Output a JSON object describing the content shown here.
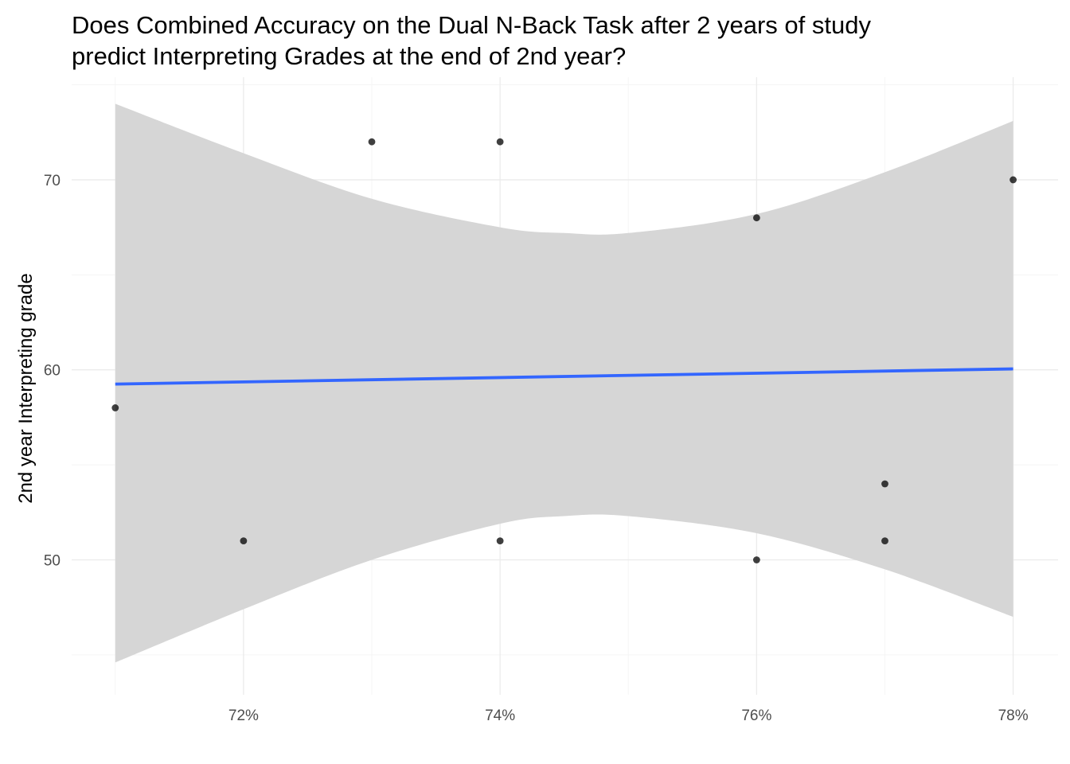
{
  "chart_data": {
    "type": "scatter",
    "title": [
      "Does Combined Accuracy on the Dual N-Back Task after 2 years of study",
      "predict Interpreting Grades at the end of 2nd year?"
    ],
    "xlabel": "",
    "ylabel": "2nd year Interpreting grade",
    "x_tick_values": [
      0.72,
      0.74,
      0.76,
      0.78
    ],
    "x_tick_labels": [
      "72%",
      "74%",
      "76%",
      "78%"
    ],
    "y_tick_values": [
      50,
      60,
      70
    ],
    "y_tick_labels": [
      "50",
      "60",
      "70"
    ],
    "xlim": [
      0.7066,
      0.7835
    ],
    "ylim": [
      42.9,
      75.4
    ],
    "grid": true,
    "points": [
      {
        "x": 0.71,
        "y": 58
      },
      {
        "x": 0.72,
        "y": 51
      },
      {
        "x": 0.73,
        "y": 72
      },
      {
        "x": 0.74,
        "y": 72
      },
      {
        "x": 0.74,
        "y": 51
      },
      {
        "x": 0.76,
        "y": 68
      },
      {
        "x": 0.76,
        "y": 50
      },
      {
        "x": 0.77,
        "y": 54
      },
      {
        "x": 0.77,
        "y": 51
      },
      {
        "x": 0.78,
        "y": 70
      }
    ],
    "fit_line": {
      "x": [
        0.71,
        0.78
      ],
      "y": [
        59.25,
        60.05
      ]
    },
    "confidence_band": {
      "x": [
        0.71,
        0.72,
        0.73,
        0.74,
        0.745,
        0.75,
        0.76,
        0.77,
        0.78
      ],
      "upper": [
        74.0,
        71.4,
        69.0,
        67.5,
        67.2,
        67.2,
        68.2,
        70.4,
        73.1
      ],
      "lower": [
        44.6,
        47.4,
        50.0,
        51.9,
        52.3,
        52.3,
        51.4,
        49.5,
        47.0
      ]
    },
    "colors": {
      "points": "#000000",
      "fit_line": "#3366FF",
      "band": "#d6d6d6",
      "grid_major": "#ebebeb",
      "grid_minor": "#f5f5f5"
    }
  }
}
